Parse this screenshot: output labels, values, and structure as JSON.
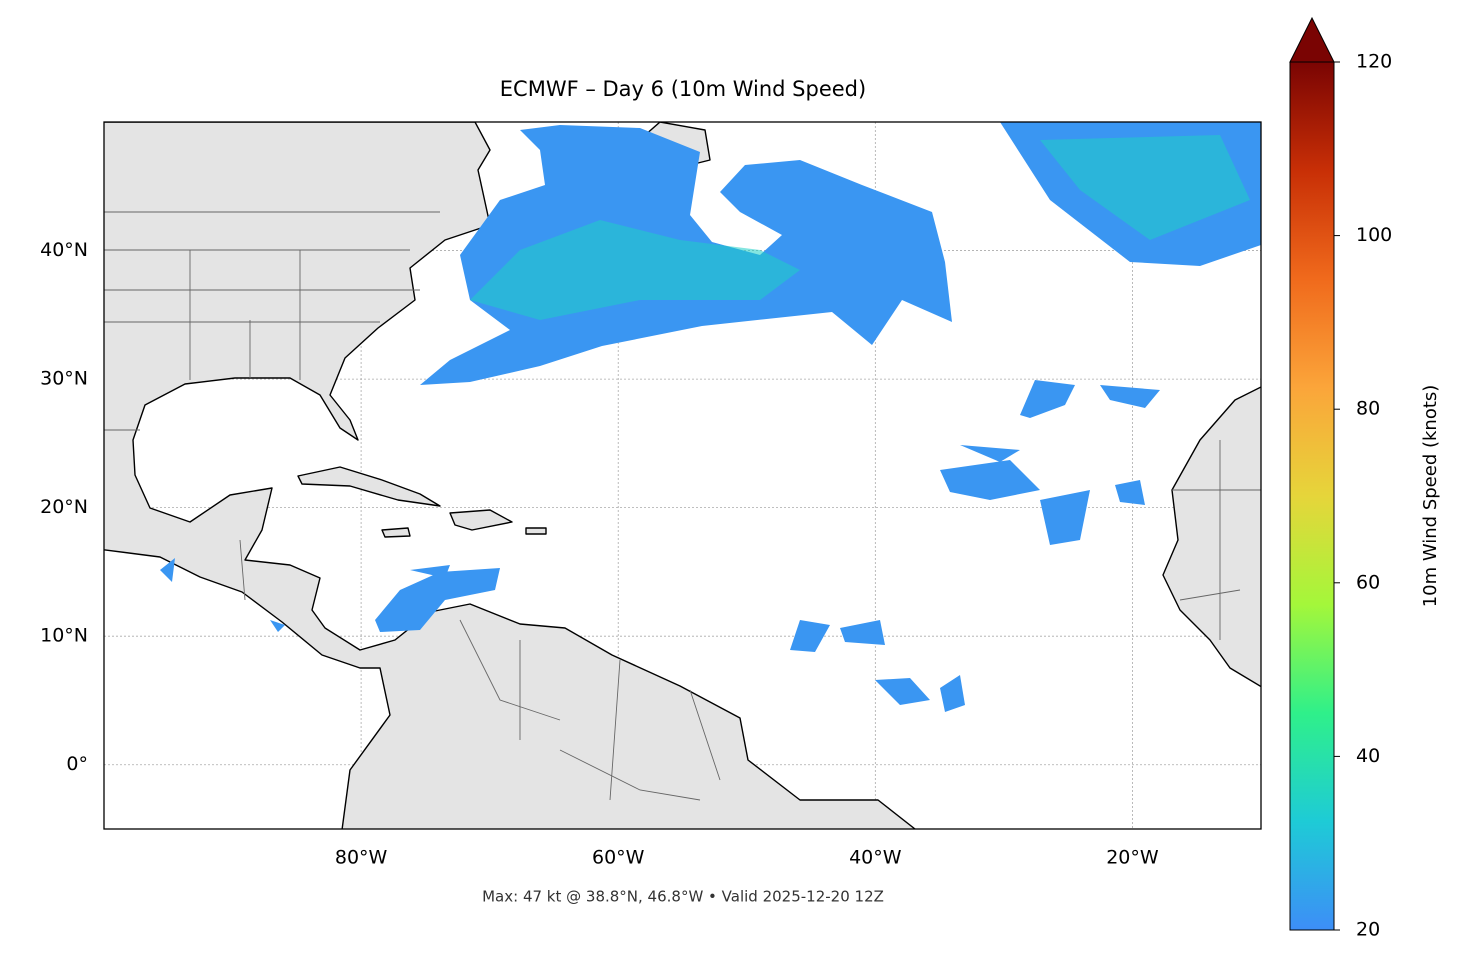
{
  "chart_data": {
    "type": "map",
    "title": "ECMWF – Day 6 (10m Wind Speed)",
    "xlim": [
      -100,
      -10
    ],
    "ylim": [
      -5,
      50
    ],
    "xticks": [
      {
        "value": -80,
        "label": "80°W"
      },
      {
        "value": -60,
        "label": "60°W"
      },
      {
        "value": -40,
        "label": "40°W"
      },
      {
        "value": -20,
        "label": "20°W"
      }
    ],
    "yticks": [
      {
        "value": 0,
        "label": "0°"
      },
      {
        "value": 10,
        "label": "10°N"
      },
      {
        "value": 20,
        "label": "20°N"
      },
      {
        "value": 30,
        "label": "30°N"
      },
      {
        "value": 40,
        "label": "40°N"
      }
    ],
    "grid": true,
    "footnote": "Max: 47 kt @ 38.8°N, 46.8°W • Valid 2025-12-20 12Z",
    "colorbar": {
      "label": "10m Wind Speed (knots)",
      "lim": [
        20,
        120
      ],
      "ticks": [
        20,
        40,
        60,
        80,
        100,
        120
      ],
      "colors": [
        "#3d8ef7",
        "#1ecbd6",
        "#2ff08a",
        "#a4f73a",
        "#e6d53a",
        "#fba53a",
        "#f06a1c",
        "#c82f06",
        "#7a0403"
      ],
      "extend": "max"
    }
  }
}
